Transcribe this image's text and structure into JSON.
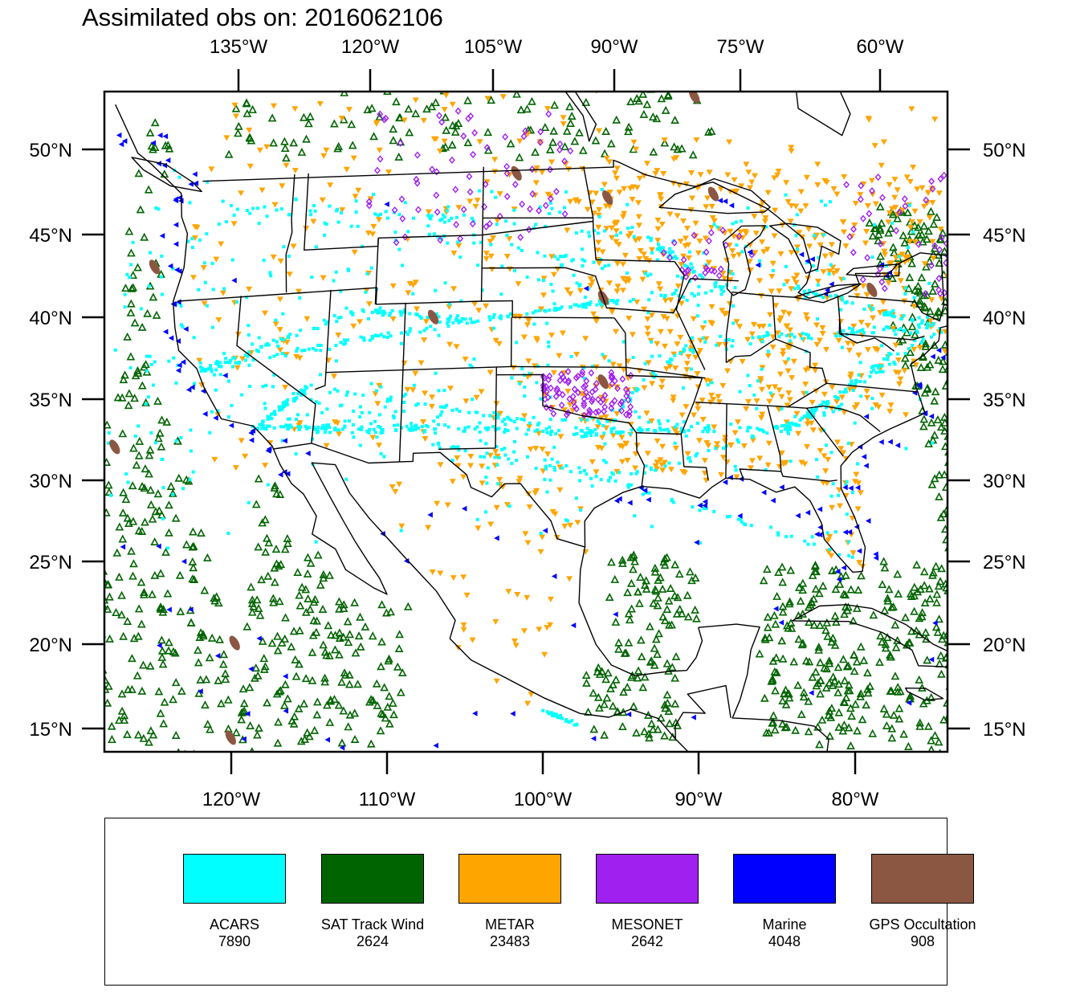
{
  "title": "Assimilated obs on: 2016062106",
  "map": {
    "top_lon_labels": [
      "135°W",
      "120°W",
      "105°W",
      "90°W",
      "75°W",
      "60°W"
    ],
    "bottom_lon_labels": [
      "120°W",
      "110°W",
      "100°W",
      "90°W",
      "80°W"
    ],
    "lat_labels": [
      "50°N",
      "45°N",
      "40°N",
      "35°N",
      "30°N",
      "25°N",
      "20°N",
      "15°N"
    ],
    "extent": {
      "lon_min": -128.1,
      "lon_max": -73.5,
      "lat_min": 13.6,
      "lat_max": 53.6
    },
    "land_color": "#ffffff",
    "coastline_color": "#000000"
  },
  "legend": {
    "items": [
      {
        "name": "ACARS",
        "count": "7890",
        "color": "#00ffff",
        "marker": "square"
      },
      {
        "name": "SAT Track Wind",
        "count": "2624",
        "color": "#006400",
        "marker": "open-triangle-up"
      },
      {
        "name": "METAR",
        "count": "23483",
        "color": "#ffa500",
        "marker": "triangle-down"
      },
      {
        "name": "MESONET",
        "count": "2642",
        "color": "#a020f0",
        "marker": "open-diamond"
      },
      {
        "name": "Marine",
        "count": "4048",
        "color": "#0000ff",
        "marker": "triangle-left"
      },
      {
        "name": "GPS Occultation",
        "count": "908",
        "color": "#8b5742",
        "marker": "ellipse"
      }
    ]
  }
}
